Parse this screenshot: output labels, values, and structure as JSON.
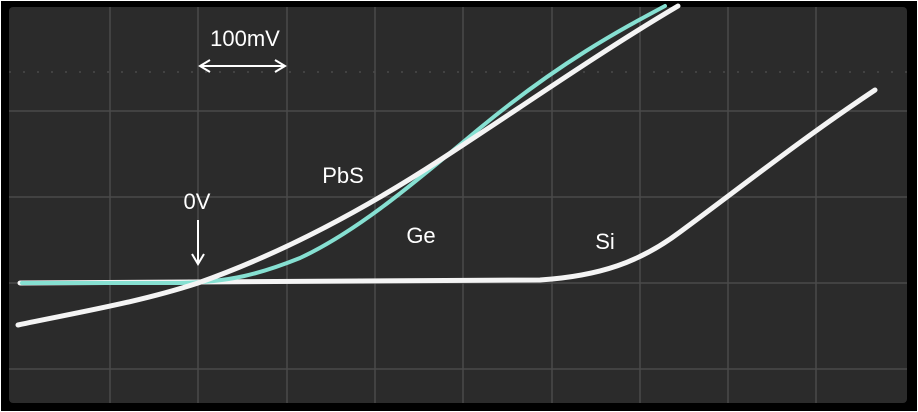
{
  "annotations": {
    "scale": "100mV",
    "zero": "0V",
    "curves": {
      "pbs": "PbS",
      "ge": "Ge",
      "si": "Si"
    }
  }
}
